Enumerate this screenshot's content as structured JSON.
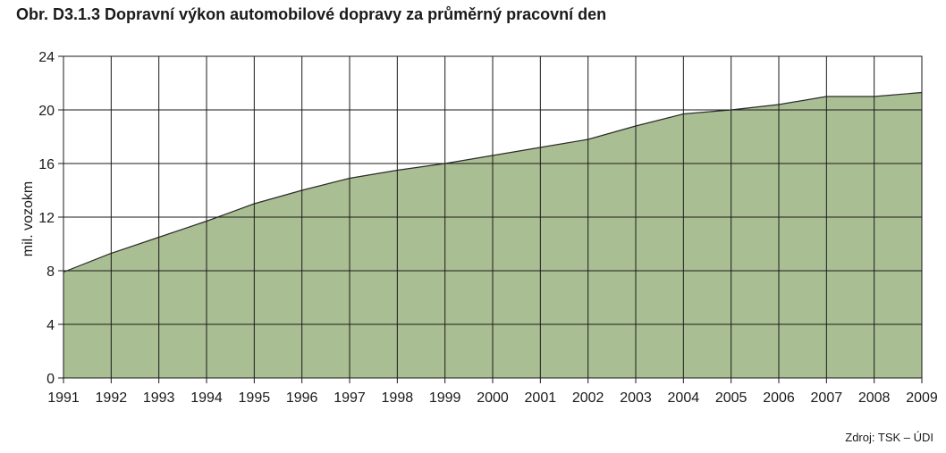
{
  "figure": {
    "title": "Obr. D3.1.3  Dopravní výkon automobilové dopravy za průměrný pracovní den",
    "source": "Zdroj: TSK – ÚDI"
  },
  "chart_data": {
    "type": "area",
    "title": "Obr. D3.1.3  Dopravní výkon automobilové dopravy za průměrný pracovní den",
    "xlabel": "",
    "ylabel": "mil. vozokm",
    "x": [
      1991,
      1992,
      1993,
      1994,
      1995,
      1996,
      1997,
      1998,
      1999,
      2000,
      2001,
      2002,
      2003,
      2004,
      2005,
      2006,
      2007,
      2008,
      2009
    ],
    "series": [
      {
        "values": [
          7.9,
          9.3,
          10.5,
          11.7,
          13.0,
          14.0,
          14.9,
          15.5,
          16.0,
          16.6,
          17.2,
          17.8,
          18.8,
          19.7,
          20.0,
          20.4,
          21.0,
          21.0,
          21.3
        ]
      }
    ],
    "x_ticks": [
      "1991",
      "1992",
      "1993",
      "1994",
      "1995",
      "1996",
      "1997",
      "1998",
      "1999",
      "2000",
      "2001",
      "2002",
      "2003",
      "2004",
      "2005",
      "2006",
      "2007",
      "2008",
      "2009"
    ],
    "y_ticks": [
      "0",
      "4",
      "8",
      "12",
      "16",
      "20",
      "24"
    ],
    "ylim": [
      0,
      24
    ],
    "xlim": [
      1991,
      2009
    ],
    "grid": true,
    "legend": "none",
    "colors": {
      "fill": "#a9bf93",
      "line": "#2b2b2b",
      "grid": "#1a1a1a"
    }
  }
}
